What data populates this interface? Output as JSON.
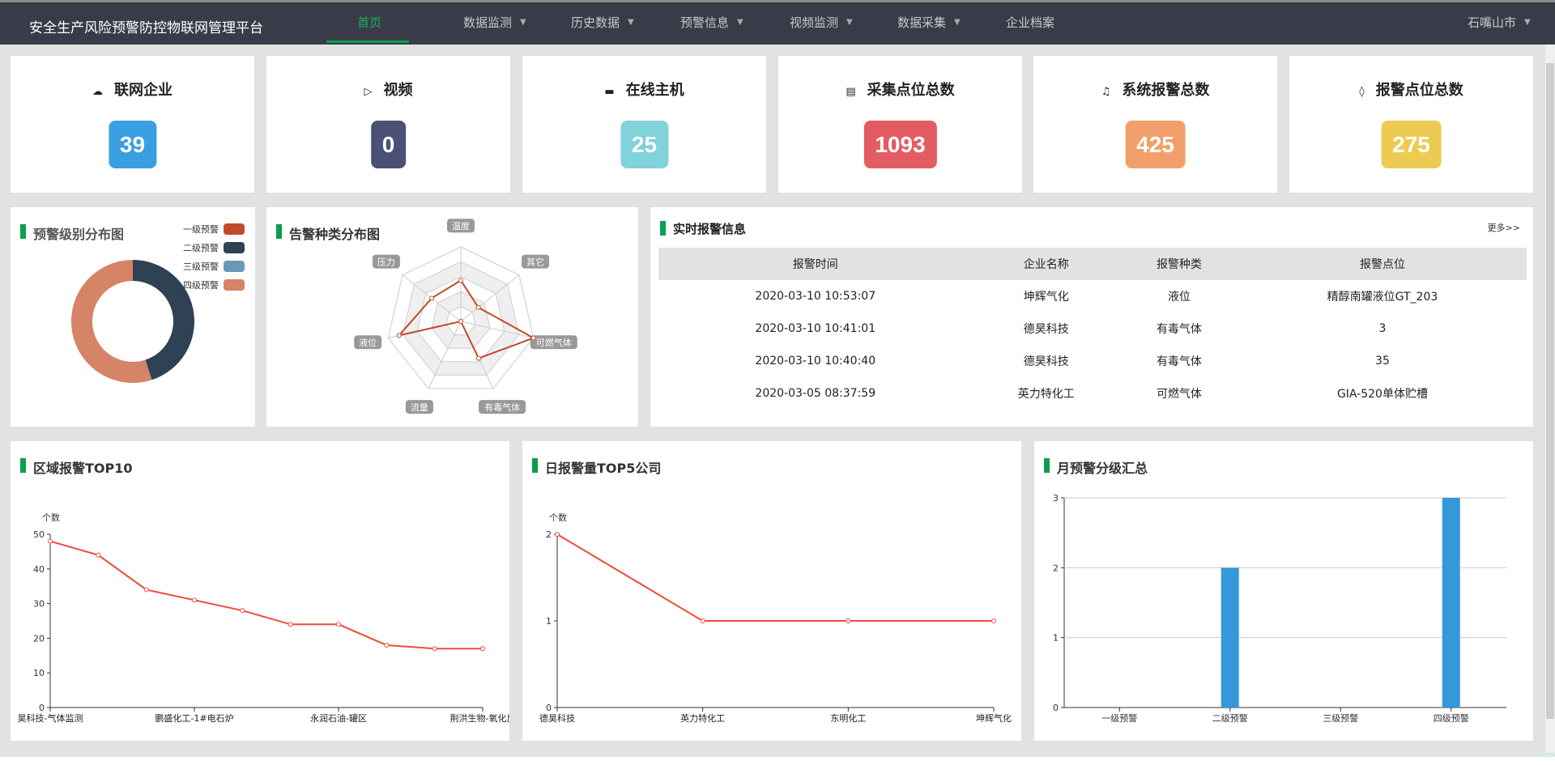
{
  "header": {
    "title": "安全生产风险预警防控物联网管理平台",
    "nav": [
      {
        "label": "首页",
        "active": true,
        "dropdown": false
      },
      {
        "label": "数据监测",
        "dropdown": true
      },
      {
        "label": "历史数据",
        "dropdown": true
      },
      {
        "label": "预警信息",
        "dropdown": true
      },
      {
        "label": "视频监测",
        "dropdown": true
      },
      {
        "label": "数据采集",
        "dropdown": true
      },
      {
        "label": "企业档案",
        "dropdown": false
      }
    ],
    "region": "石嘴山市"
  },
  "stats": [
    {
      "label": "联网企业",
      "value": "39",
      "icon": "cloud-upload-icon",
      "glyph": "☁",
      "color": "#3a9fe0"
    },
    {
      "label": "视频",
      "value": "0",
      "icon": "video-icon",
      "glyph": "▷",
      "color": "#4b5075"
    },
    {
      "label": "在线主机",
      "value": "25",
      "icon": "monitor-icon",
      "glyph": "▬",
      "color": "#80d2db"
    },
    {
      "label": "采集点位总数",
      "value": "1093",
      "icon": "calendar-icon",
      "glyph": "▤",
      "color": "#e35c62"
    },
    {
      "label": "系统报警总数",
      "value": "425",
      "icon": "bell-icon",
      "glyph": "♫",
      "color": "#f2a06b"
    },
    {
      "label": "报警点位总数",
      "value": "275",
      "icon": "speaker-icon",
      "glyph": "◊",
      "color": "#edcb52"
    }
  ],
  "realtime": {
    "title": "实时报警信息",
    "more": "更多>>",
    "columns": [
      "报警时间",
      "企业名称",
      "报警种类",
      "报警点位"
    ],
    "rows": [
      [
        "2020-03-10 10:53:07",
        "坤辉气化",
        "液位",
        "精醇南罐液位GT_203"
      ],
      [
        "2020-03-10 10:41:01",
        "德昊科技",
        "有毒气体",
        "3"
      ],
      [
        "2020-03-10 10:40:40",
        "德昊科技",
        "有毒气体",
        "35"
      ],
      [
        "2020-03-05 08:37:59",
        "英力特化工",
        "可燃气体",
        "GIA-520单体贮槽"
      ]
    ]
  },
  "chart_data": [
    {
      "type": "pie",
      "title": "预警级别分布图",
      "donut": true,
      "legend": "top-right",
      "series": [
        {
          "name": "一级预警",
          "value": 0,
          "color": "#c14a2c"
        },
        {
          "name": "二级预警",
          "value": 45,
          "color": "#2e4254"
        },
        {
          "name": "三级预警",
          "value": 0,
          "color": "#6699b9"
        },
        {
          "name": "四级预警",
          "value": 55,
          "color": "#d58465"
        }
      ]
    },
    {
      "type": "radar",
      "title": "告警种类分布图",
      "indicators": [
        "温度",
        "其它",
        "可燃气体",
        "有毒气体",
        "流量",
        "液位",
        "压力"
      ],
      "values": [
        0.55,
        0.3,
        1.0,
        0.55,
        0.0,
        0.85,
        0.5
      ],
      "max": 1,
      "color": "#c14a2c"
    },
    {
      "type": "line",
      "title": "区域报警TOP10",
      "ylabel": "个数",
      "ylim": [
        0,
        50
      ],
      "yticks": [
        0,
        10,
        20,
        30,
        40,
        50
      ],
      "categories": [
        "昊科技-气体监测",
        "",
        "",
        "鹏盛化工-1#电石炉",
        "",
        "",
        "永润石油-罐区",
        "",
        "",
        "荆洪生物-氧化反"
      ],
      "values": [
        48,
        44,
        34,
        31,
        28,
        24,
        24,
        18,
        17,
        17
      ],
      "color": "#f04b3c"
    },
    {
      "type": "line",
      "title": "日报警量TOP5公司",
      "ylabel": "个数",
      "ylim": [
        0,
        2
      ],
      "yticks": [
        0,
        1,
        2
      ],
      "categories": [
        "德昊科技",
        "英力特化工",
        "东明化工",
        "坤辉气化"
      ],
      "values": [
        2,
        1,
        1,
        1
      ],
      "color": "#f04b3c"
    },
    {
      "type": "bar",
      "title": "月预警分级汇总",
      "ylim": [
        0,
        3
      ],
      "yticks": [
        0,
        1,
        2,
        3
      ],
      "grid": true,
      "categories": [
        "一级预警",
        "二级预警",
        "三级预警",
        "四级预警"
      ],
      "values": [
        0,
        2,
        0,
        3
      ],
      "color": "#3498db"
    }
  ]
}
